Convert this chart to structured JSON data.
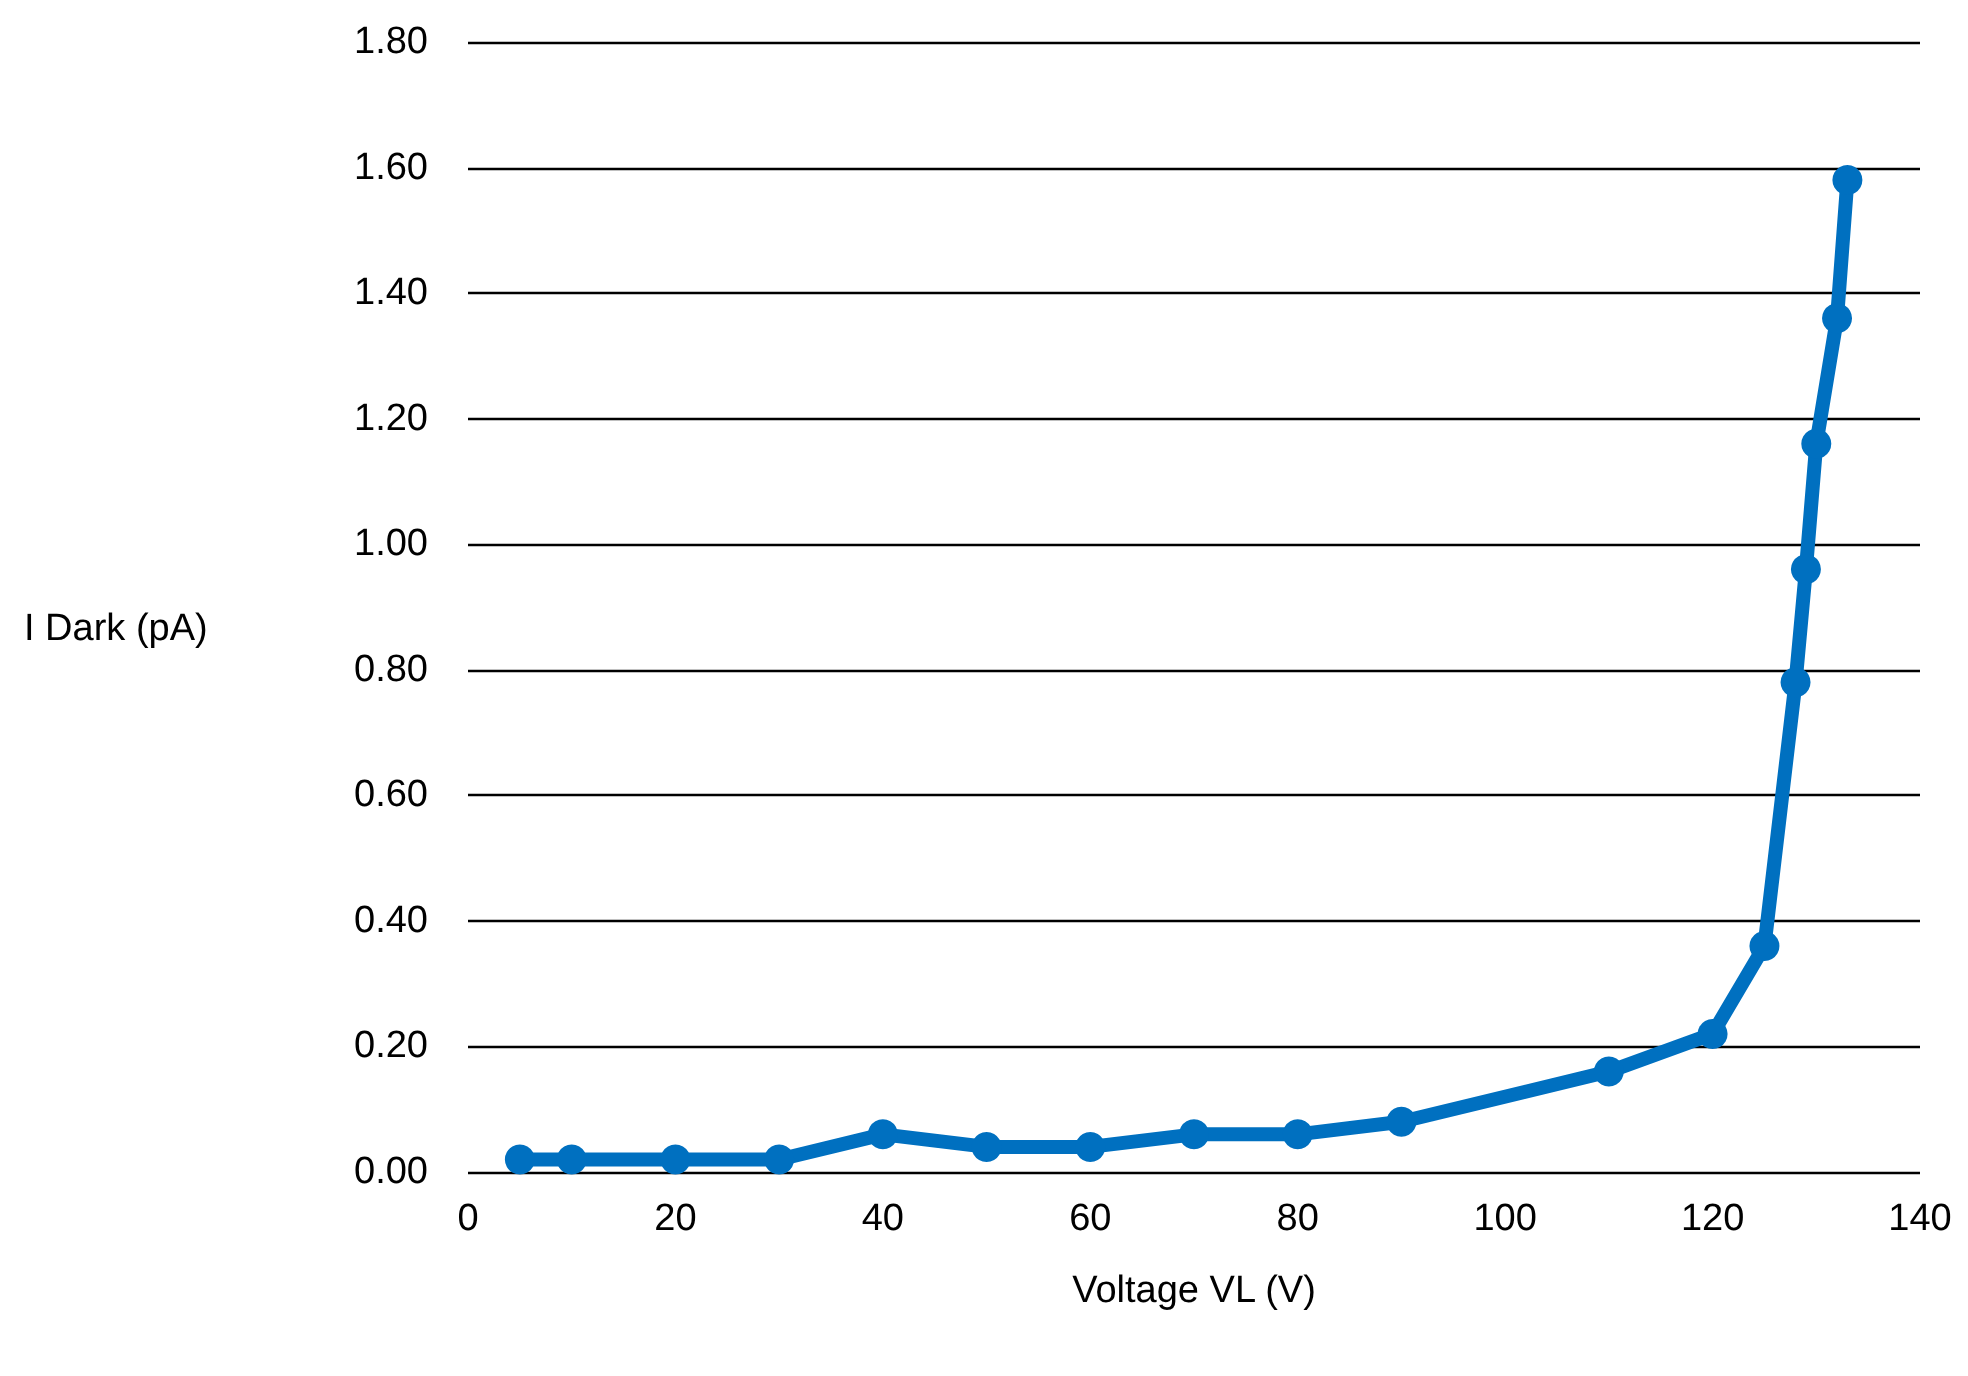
{
  "chart_data": {
    "type": "line",
    "xlabel": "Voltage VL (V)",
    "ylabel": "I Dark (pA)",
    "series": [
      {
        "color": "#0070c0",
        "x": [
          5,
          10,
          20,
          30,
          40,
          50,
          60,
          70,
          80,
          90,
          110,
          120,
          125,
          128,
          129,
          130,
          132,
          133
        ],
        "values": [
          0.02,
          0.02,
          0.02,
          0.02,
          0.06,
          0.04,
          0.04,
          0.06,
          0.06,
          0.08,
          0.16,
          0.22,
          0.36,
          0.78,
          0.96,
          1.16,
          1.36,
          1.58
        ]
      }
    ],
    "xlim": [
      0,
      140
    ],
    "xticks": [
      0,
      20,
      40,
      60,
      80,
      100,
      120,
      140
    ],
    "ylim": [
      0,
      1.8
    ],
    "yticks": [
      {
        "value": 0,
        "label": "0.00"
      },
      {
        "value": 0.2,
        "label": "0.20"
      },
      {
        "value": 0.4,
        "label": "0.40"
      },
      {
        "value": 0.6,
        "label": "0.60"
      },
      {
        "value": 0.8,
        "label": "0.80"
      },
      {
        "value": 1,
        "label": "1.00"
      },
      {
        "value": 1.2,
        "label": "1.20"
      },
      {
        "value": 1.4,
        "label": "1.40"
      },
      {
        "value": 1.6,
        "label": "1.60"
      },
      {
        "value": 1.8,
        "label": "1.80"
      }
    ],
    "grid": "y",
    "marker": "circle",
    "line_style": "solid"
  }
}
